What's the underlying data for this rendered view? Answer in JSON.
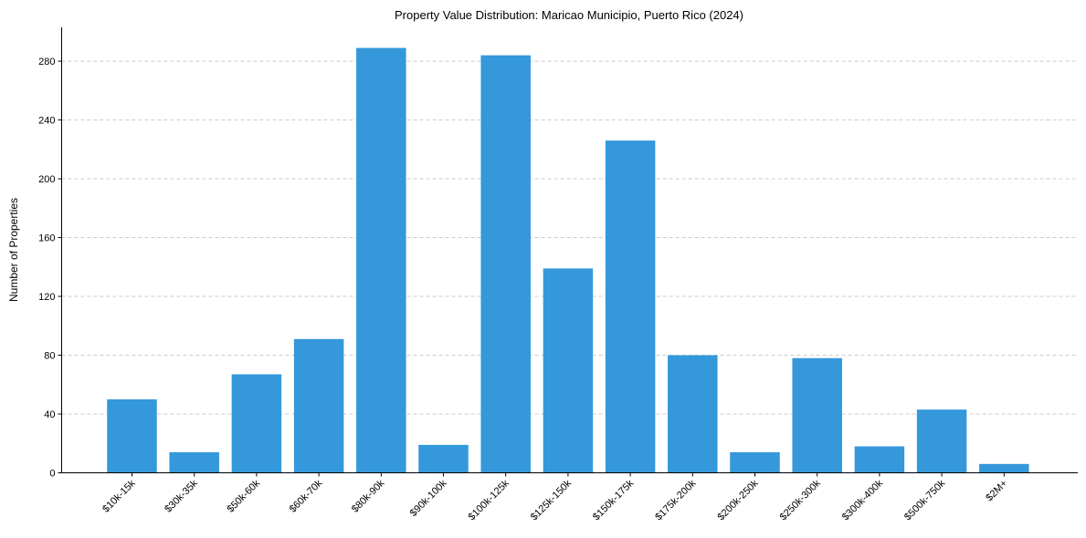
{
  "chart_data": {
    "type": "bar",
    "title": "Property Value Distribution: Maricao Municipio, Puerto Rico (2024)",
    "xlabel": "",
    "ylabel": "Number of Properties",
    "categories": [
      "$10k-15k",
      "$30k-35k",
      "$50k-60k",
      "$60k-70k",
      "$80k-90k",
      "$90k-100k",
      "$100k-125k",
      "$125k-150k",
      "$150k-175k",
      "$175k-200k",
      "$200k-250k",
      "$250k-300k",
      "$300k-400k",
      "$500k-750k",
      "$2M+"
    ],
    "values": [
      50,
      14,
      67,
      91,
      289,
      19,
      284,
      139,
      226,
      80,
      14,
      78,
      18,
      43,
      6
    ],
    "ylim": [
      0,
      303
    ],
    "yticks": [
      0,
      40,
      80,
      120,
      160,
      200,
      240,
      280
    ],
    "grid": true,
    "bar_color": "#3498db"
  }
}
